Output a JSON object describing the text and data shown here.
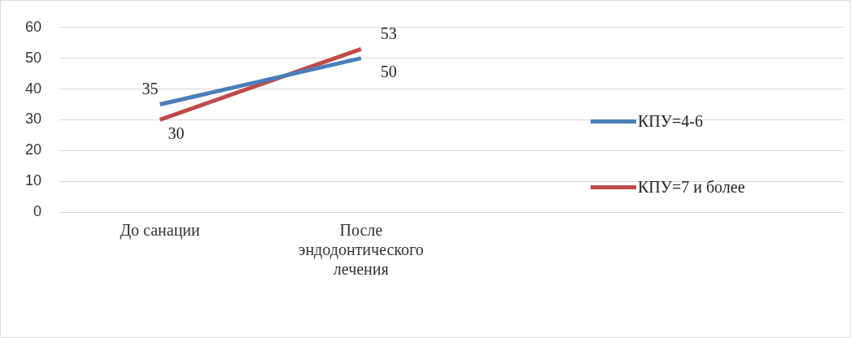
{
  "chart_data": {
    "type": "line",
    "categories": [
      "До санации",
      "После эндодонтического лечения"
    ],
    "series": [
      {
        "name": "КПУ=4-6",
        "color": "#4a7ebb",
        "values": [
          35,
          50
        ]
      },
      {
        "name": "КПУ=7 и более",
        "color": "#be4b48",
        "values": [
          30,
          53
        ]
      }
    ],
    "ylim": [
      0,
      60
    ],
    "yticks": [
      0,
      10,
      20,
      30,
      40,
      50,
      60
    ],
    "grid": "y",
    "legend": "right",
    "data_labels": true,
    "marker": "none",
    "line_style": "solid"
  }
}
